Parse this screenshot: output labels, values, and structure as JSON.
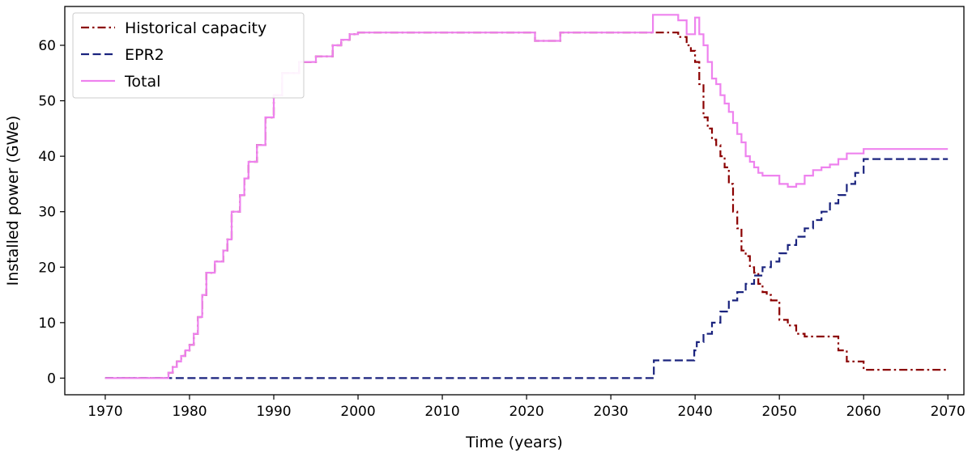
{
  "chart_data": {
    "type": "line",
    "xlabel": "Time (years)",
    "ylabel": "Installed power (GWe)",
    "xlim": [
      1965.5,
      1973.5
    ],
    "ylim": [
      -3,
      67
    ],
    "xticks": [
      1970,
      1980,
      1990,
      2000,
      2010,
      2020,
      2030,
      2040,
      2050,
      2060,
      2070
    ],
    "yticks": [
      0,
      10,
      20,
      30,
      40,
      50,
      60
    ],
    "grid": false,
    "legend_position": "top-left",
    "series": [
      {
        "name": "Historical capacity",
        "color": "#8b0000",
        "style": "dashdot",
        "x": [
          1970,
          1977,
          1977.5,
          1978,
          1978.5,
          1979,
          1979.5,
          1980,
          1980.5,
          1981,
          1981.5,
          1982,
          1983,
          1984,
          1984.5,
          1985,
          1986,
          1986.5,
          1987,
          1988,
          1989,
          1990,
          1991,
          1993,
          1995,
          1997,
          1998,
          1999,
          2000,
          2020,
          2021,
          2024,
          2035,
          2038,
          2039,
          2039.5,
          2040,
          2040.5,
          2041,
          2041.5,
          2042,
          2042.5,
          2043,
          2043.5,
          2044,
          2044.5,
          2045,
          2045.5,
          2046,
          2046.5,
          2047,
          2047.5,
          2048,
          2048.5,
          2049,
          2050,
          2051,
          2052,
          2053,
          2056,
          2057,
          2058,
          2060,
          2070
        ],
        "y": [
          0,
          0,
          1,
          2,
          3,
          4,
          5,
          6,
          8,
          11,
          15,
          19,
          21,
          23,
          25,
          30,
          33,
          36,
          39,
          42,
          47,
          51,
          55,
          57,
          58,
          60,
          61,
          62,
          62.3,
          62.3,
          60.8,
          62.3,
          62.3,
          61.5,
          60,
          59,
          57,
          53,
          47,
          45,
          43,
          42,
          40,
          38,
          35,
          30,
          27,
          23,
          22,
          20,
          19,
          17,
          15.5,
          15,
          14,
          10.5,
          9.5,
          8,
          7.5,
          7.5,
          5,
          3,
          1.5,
          1.5
        ]
      },
      {
        "name": "EPR2",
        "color": "#1a237e",
        "style": "dashed",
        "x": [
          1970,
          2035,
          2035.1,
          2038,
          2039.9,
          2040.2,
          2041,
          2042,
          2043,
          2044,
          2045,
          2046,
          2047,
          2048,
          2049,
          2050,
          2051,
          2052,
          2053,
          2054,
          2055,
          2056,
          2057,
          2058,
          2059,
          2060,
          2070
        ],
        "y": [
          0,
          0,
          3.2,
          3.2,
          5,
          6.5,
          8,
          10,
          12,
          14,
          15.5,
          17,
          18.5,
          20,
          21,
          22.5,
          24,
          25.5,
          27,
          28.5,
          30,
          31.5,
          33,
          35,
          37,
          39.5,
          39.5
        ]
      },
      {
        "name": "Total",
        "color": "#ee82ee",
        "style": "solid",
        "x": [
          1970,
          1977,
          1977.5,
          1978,
          1978.5,
          1979,
          1979.5,
          1980,
          1980.5,
          1981,
          1981.5,
          1982,
          1983,
          1984,
          1984.5,
          1985,
          1986,
          1986.5,
          1987,
          1988,
          1989,
          1990,
          1991,
          1993,
          1995,
          1997,
          1998,
          1999,
          2000,
          2020,
          2021,
          2024,
          2035,
          2038,
          2039,
          2040,
          2040.5,
          2041,
          2041.5,
          2042,
          2042.5,
          2043,
          2043.5,
          2044,
          2044.5,
          2045,
          2045.5,
          2046,
          2046.5,
          2047,
          2047.5,
          2048,
          2048.5,
          2049,
          2050,
          2051,
          2052,
          2053,
          2054,
          2055,
          2056,
          2057,
          2058,
          2060,
          2070
        ],
        "y": [
          0,
          0,
          1,
          2,
          3,
          4,
          5,
          6,
          8,
          11,
          15,
          19,
          21,
          23,
          25,
          30,
          33,
          36,
          39,
          42,
          47,
          51,
          55,
          57,
          58,
          60,
          61,
          62,
          62.3,
          62.3,
          60.8,
          62.3,
          65.5,
          64.5,
          62,
          65,
          62,
          60,
          57,
          54,
          53,
          51,
          49.5,
          48,
          46,
          44,
          42.5,
          40,
          39,
          38,
          37,
          36.5,
          36.5,
          36.5,
          35,
          34.5,
          35,
          36.5,
          37.5,
          38,
          38.5,
          39.5,
          40.5,
          41.3,
          41.3
        ]
      }
    ]
  }
}
